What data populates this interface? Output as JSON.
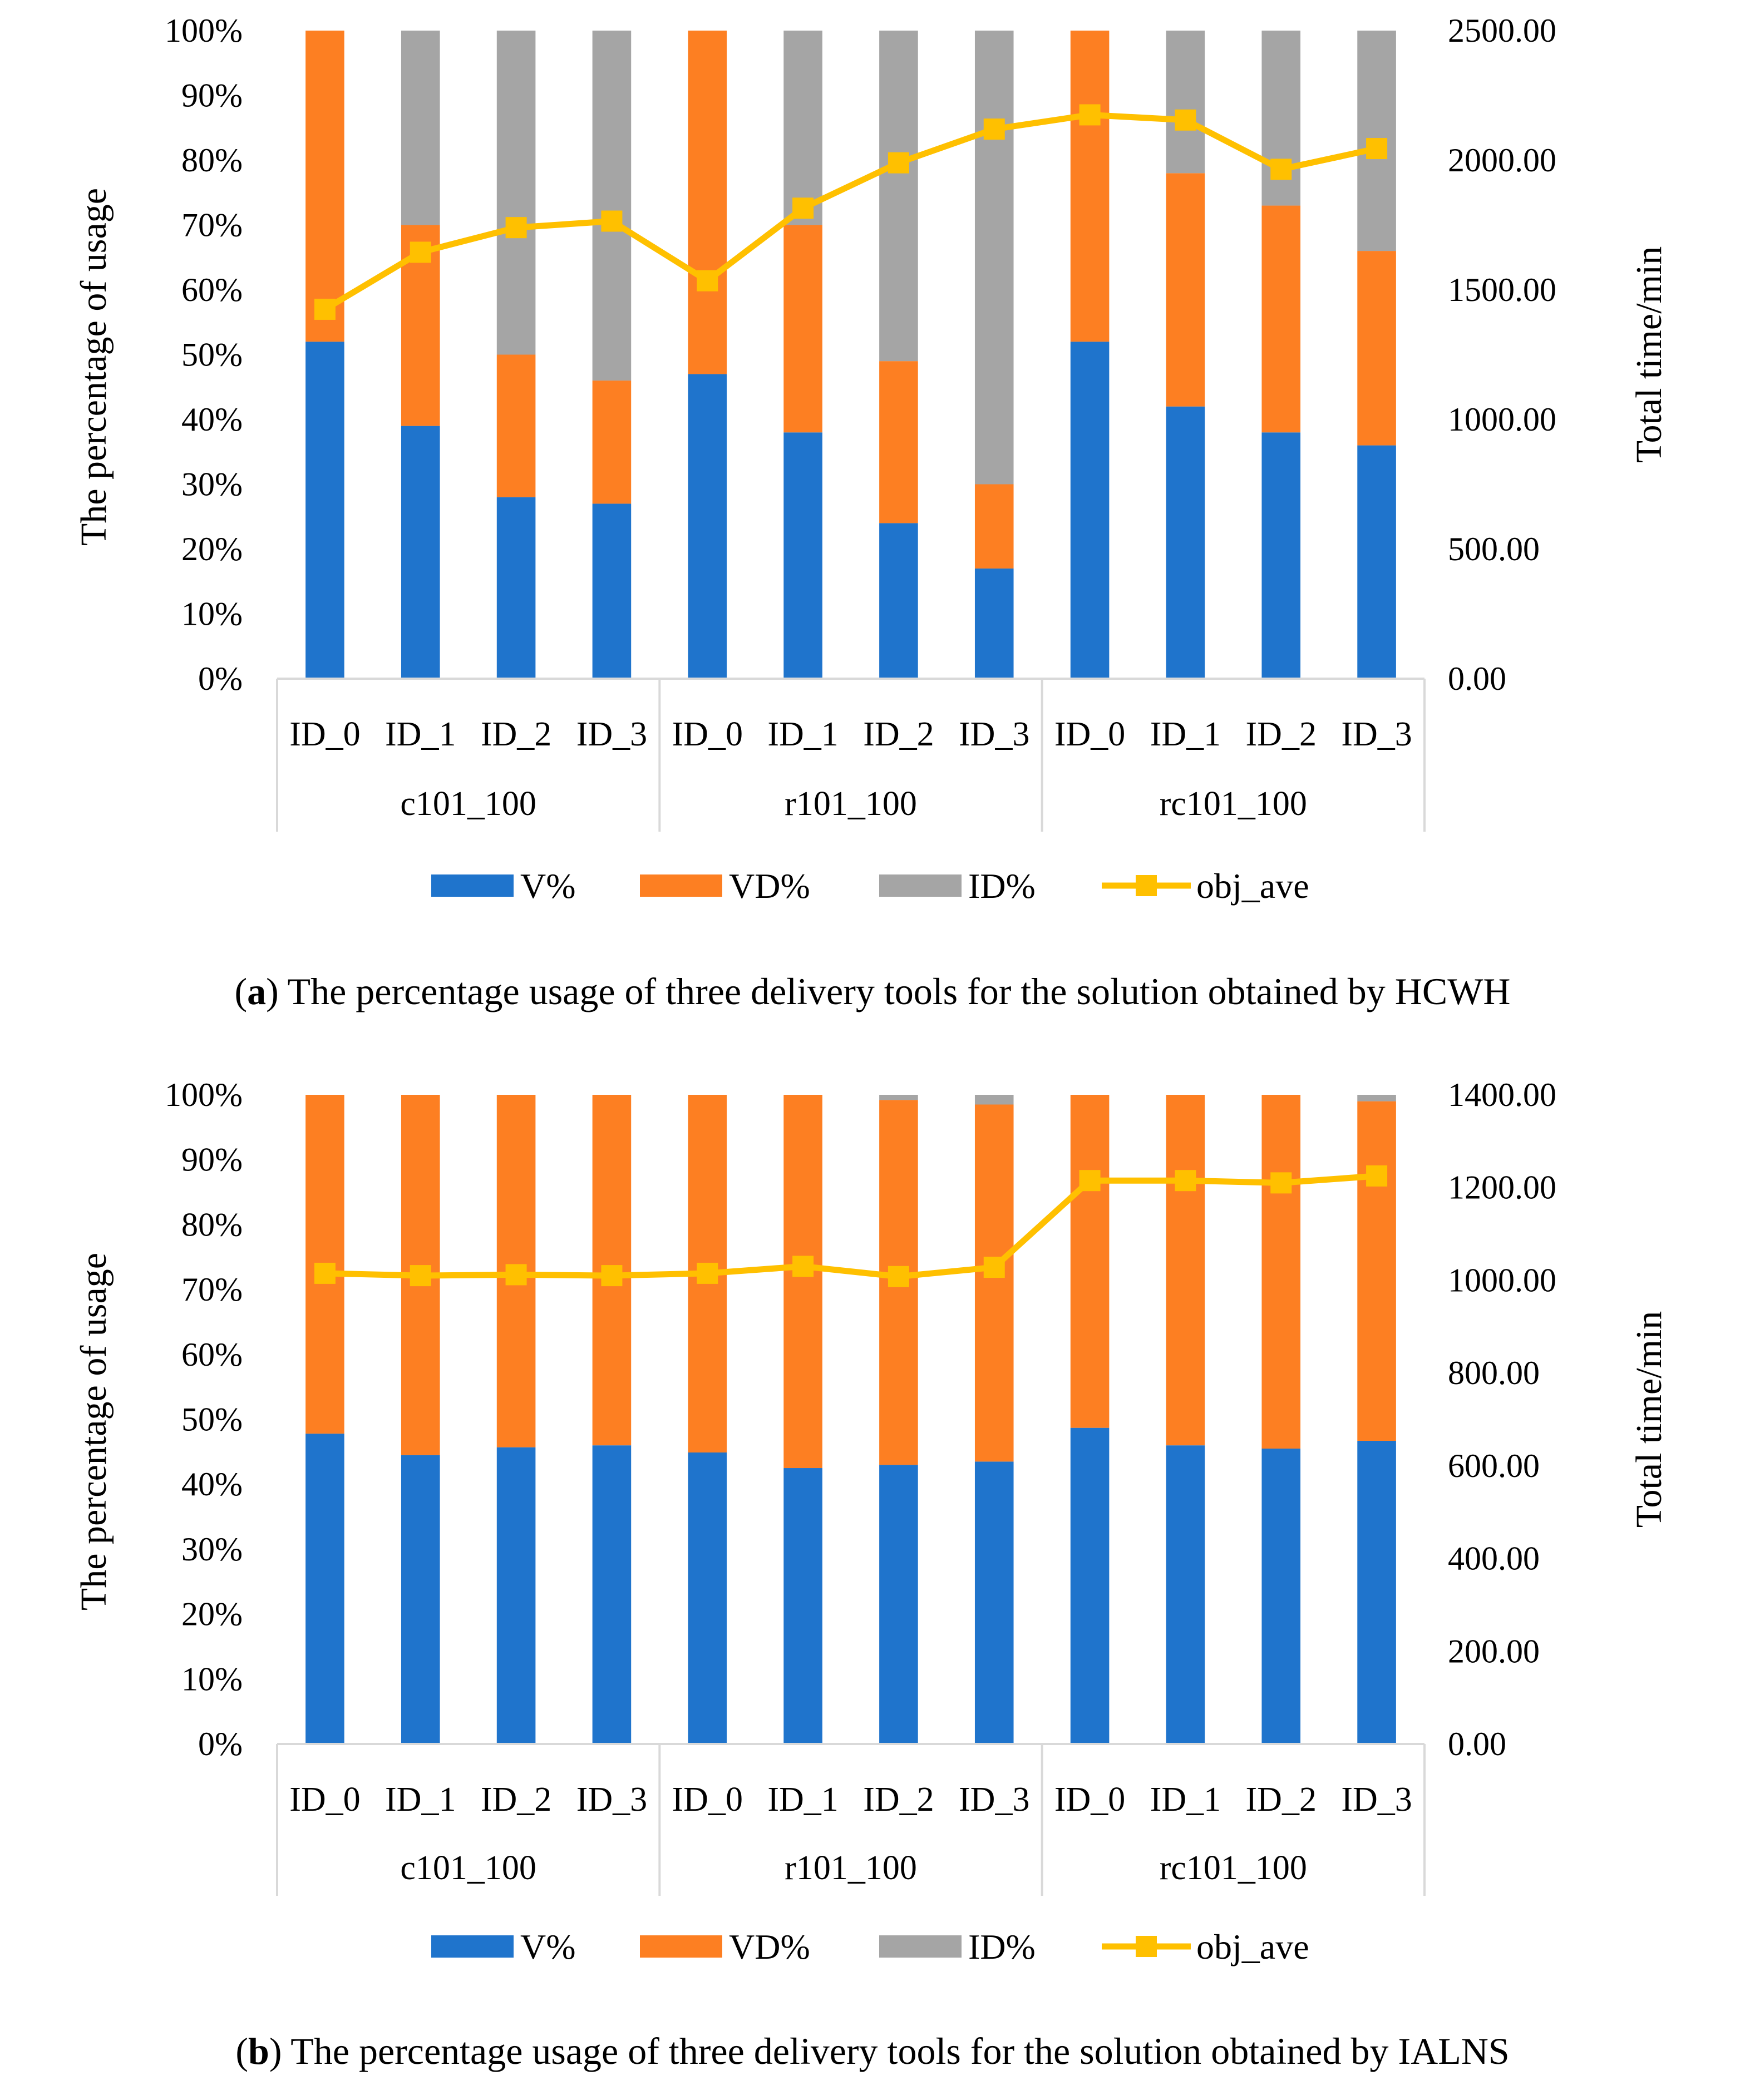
{
  "chart_data": [
    {
      "type": "bar",
      "subtype": "stacked-percent-with-line-on-secondary-axis",
      "caption_prefix": "a",
      "caption_text": "The percentage usage of three delivery tools for the solution obtained by HCWH",
      "ylabel_left": "The percentage of usage",
      "ylabel_right": "Total time/min",
      "ylim_left": [
        0,
        100
      ],
      "y_left_ticks": [
        "0%",
        "10%",
        "20%",
        "30%",
        "40%",
        "50%",
        "60%",
        "70%",
        "80%",
        "90%",
        "100%"
      ],
      "ylim_right": [
        0,
        2500
      ],
      "y_right_ticks": [
        "0.00",
        "500.00",
        "1000.00",
        "1500.00",
        "2000.00",
        "2500.00"
      ],
      "groups": [
        "c101_100",
        "r101_100",
        "rc101_100"
      ],
      "categories": [
        "ID_0",
        "ID_1",
        "ID_2",
        "ID_3",
        "ID_0",
        "ID_1",
        "ID_2",
        "ID_3",
        "ID_0",
        "ID_1",
        "ID_2",
        "ID_3"
      ],
      "series": [
        {
          "name": "V%",
          "color": "#1f74cc",
          "values": [
            52,
            39,
            28,
            27,
            47,
            38,
            24,
            17,
            52,
            42,
            38,
            36
          ]
        },
        {
          "name": "VD%",
          "color": "#fd7f22",
          "values": [
            48,
            31,
            22,
            19,
            53,
            32,
            25,
            13,
            48,
            36,
            35,
            30
          ]
        },
        {
          "name": "ID%",
          "color": "#a5a5a5",
          "values": [
            0,
            30,
            50,
            54,
            0,
            30,
            51,
            70,
            0,
            22,
            27,
            34
          ]
        }
      ],
      "line": {
        "name": "obj_ave",
        "color": "#ffc000",
        "values": [
          1425,
          1645,
          1740,
          1765,
          1535,
          1815,
          1990,
          2120,
          2175,
          2155,
          1965,
          2045
        ]
      },
      "legend": [
        "V%",
        "VD%",
        "ID%",
        "obj_ave"
      ],
      "legend_position": "bottom"
    },
    {
      "type": "bar",
      "subtype": "stacked-percent-with-line-on-secondary-axis",
      "caption_prefix": "b",
      "caption_text": "The percentage usage of three delivery tools for the solution obtained by IALNS",
      "ylabel_left": "The percentage of usage",
      "ylabel_right": "Total time/min",
      "ylim_left": [
        0,
        100
      ],
      "y_left_ticks": [
        "0%",
        "10%",
        "20%",
        "30%",
        "40%",
        "50%",
        "60%",
        "70%",
        "80%",
        "90%",
        "100%"
      ],
      "ylim_right": [
        0,
        1400
      ],
      "y_right_ticks": [
        "0.00",
        "200.00",
        "400.00",
        "600.00",
        "800.00",
        "1000.00",
        "1200.00",
        "1400.00"
      ],
      "groups": [
        "c101_100",
        "r101_100",
        "rc101_100"
      ],
      "categories": [
        "ID_0",
        "ID_1",
        "ID_2",
        "ID_3",
        "ID_0",
        "ID_1",
        "ID_2",
        "ID_3",
        "ID_0",
        "ID_1",
        "ID_2",
        "ID_3"
      ],
      "series": [
        {
          "name": "V%",
          "color": "#1f74cc",
          "values": [
            47.8,
            44.5,
            45.7,
            46,
            44.9,
            42.5,
            43,
            43.5,
            48.7,
            46,
            45.5,
            46.7
          ]
        },
        {
          "name": "VD%",
          "color": "#fd7f22",
          "values": [
            52.2,
            55.5,
            54.3,
            54,
            55.1,
            57.5,
            56.2,
            55,
            51.3,
            54,
            54.5,
            52.3
          ]
        },
        {
          "name": "ID%",
          "color": "#a5a5a5",
          "values": [
            0,
            0,
            0,
            0,
            0,
            0,
            0.8,
            1.5,
            0,
            0,
            0,
            1
          ]
        }
      ],
      "line": {
        "name": "obj_ave",
        "color": "#ffc000",
        "values": [
          1015,
          1010,
          1012,
          1010,
          1015,
          1030,
          1008,
          1028,
          1215,
          1215,
          1210,
          1225
        ]
      },
      "legend": [
        "V%",
        "VD%",
        "ID%",
        "obj_ave"
      ],
      "legend_position": "bottom"
    }
  ]
}
